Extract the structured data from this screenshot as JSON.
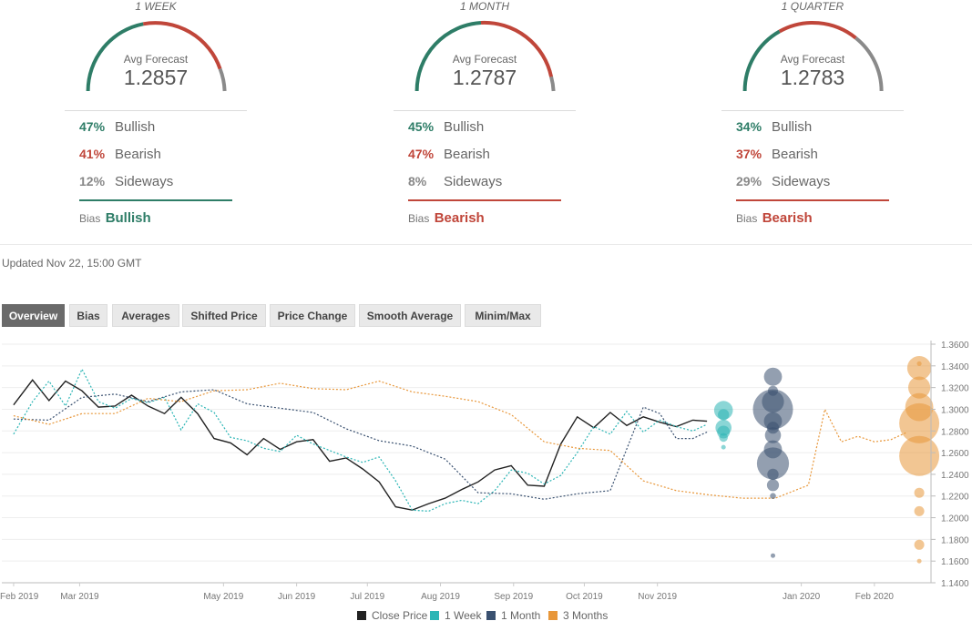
{
  "forecast_panels": [
    {
      "period": "1 WEEK",
      "avg_label": "Avg Forecast",
      "avg_value": "1.2857",
      "rows": [
        {
          "pct": "47%",
          "label": "Bullish"
        },
        {
          "pct": "41%",
          "label": "Bearish"
        },
        {
          "pct": "12%",
          "label": "Sideways"
        }
      ],
      "bias_label": "Bias",
      "bias_value": "Bullish"
    },
    {
      "period": "1 MONTH",
      "avg_label": "Avg Forecast",
      "avg_value": "1.2787",
      "rows": [
        {
          "pct": "45%",
          "label": "Bullish"
        },
        {
          "pct": "47%",
          "label": "Bearish"
        },
        {
          "pct": "8%",
          "label": "Sideways"
        }
      ],
      "bias_label": "Bias",
      "bias_value": "Bearish"
    },
    {
      "period": "1 QUARTER",
      "avg_label": "Avg Forecast",
      "avg_value": "1.2783",
      "rows": [
        {
          "pct": "34%",
          "label": "Bullish"
        },
        {
          "pct": "37%",
          "label": "Bearish"
        },
        {
          "pct": "29%",
          "label": "Sideways"
        }
      ],
      "bias_label": "Bias",
      "bias_value": "Bearish"
    }
  ],
  "updated": "Updated Nov 22, 15:00 GMT",
  "tabs": [
    "Overview",
    "Bias",
    "Averages",
    "Shifted Price",
    "Price Change",
    "Smooth Average",
    "Minim/Max"
  ],
  "active_tab": "Overview",
  "colors": {
    "bullish": "#2e7d67",
    "bearish": "#c0463a",
    "sideways": "#8a8a8a",
    "close": "#222222",
    "week": "#2bb5b5",
    "month": "#3a5170",
    "quarter": "#e8973a"
  },
  "chart_data": {
    "type": "line",
    "x_ticks": [
      "Feb 2019",
      "Mar 2019",
      "May 2019",
      "Jun 2019",
      "Jul 2019",
      "Aug 2019",
      "Sep 2019",
      "Oct 2019",
      "Nov 2019",
      "Jan 2020",
      "Feb 2020"
    ],
    "y_ticks": [
      "1.3600",
      "1.3400",
      "1.3200",
      "1.3000",
      "1.2800",
      "1.2600",
      "1.2400",
      "1.2200",
      "1.2000",
      "1.1800",
      "1.1600",
      "1.1400"
    ],
    "ylim": [
      1.14,
      1.36
    ],
    "x_range": [
      "2019-01-27",
      "2020-02-25"
    ],
    "legend": {
      "position": "bottom",
      "entries": [
        "Close Price",
        "1 Week",
        "1 Month",
        "3 Months"
      ]
    },
    "series": [
      {
        "name": "Close Price",
        "style": "solid",
        "x": [
          "2019-02-01",
          "2019-02-09",
          "2019-02-16",
          "2019-02-23",
          "2019-03-02",
          "2019-03-09",
          "2019-03-16",
          "2019-03-23",
          "2019-03-30",
          "2019-04-06",
          "2019-04-13",
          "2019-04-20",
          "2019-04-27",
          "2019-05-04",
          "2019-05-11",
          "2019-05-18",
          "2019-05-25",
          "2019-06-01",
          "2019-06-08",
          "2019-06-15",
          "2019-06-22",
          "2019-06-29",
          "2019-07-06",
          "2019-07-13",
          "2019-07-20",
          "2019-07-27",
          "2019-08-03",
          "2019-08-10",
          "2019-08-17",
          "2019-08-24",
          "2019-08-31",
          "2019-09-07",
          "2019-09-14",
          "2019-09-21",
          "2019-09-28",
          "2019-10-05",
          "2019-10-12",
          "2019-10-19",
          "2019-10-26",
          "2019-11-02",
          "2019-11-09",
          "2019-11-16",
          "2019-11-22"
        ],
        "y": [
          1.304,
          1.327,
          1.308,
          1.326,
          1.317,
          1.302,
          1.303,
          1.313,
          1.303,
          1.296,
          1.311,
          1.296,
          1.273,
          1.269,
          1.258,
          1.273,
          1.263,
          1.27,
          1.272,
          1.252,
          1.255,
          1.245,
          1.233,
          1.21,
          1.207,
          1.213,
          1.218,
          1.226,
          1.233,
          1.244,
          1.248,
          1.23,
          1.229,
          1.268,
          1.293,
          1.283,
          1.297,
          1.285,
          1.293,
          1.288,
          1.284,
          1.29,
          1.289
        ]
      },
      {
        "name": "1 Week",
        "style": "dotted",
        "x": [
          "2019-02-01",
          "2019-02-09",
          "2019-02-16",
          "2019-02-23",
          "2019-03-02",
          "2019-03-09",
          "2019-03-16",
          "2019-03-23",
          "2019-03-30",
          "2019-04-06",
          "2019-04-13",
          "2019-04-20",
          "2019-04-27",
          "2019-05-04",
          "2019-05-11",
          "2019-05-18",
          "2019-05-25",
          "2019-06-01",
          "2019-06-08",
          "2019-06-15",
          "2019-06-22",
          "2019-06-29",
          "2019-07-06",
          "2019-07-13",
          "2019-07-20",
          "2019-07-27",
          "2019-08-03",
          "2019-08-10",
          "2019-08-17",
          "2019-08-24",
          "2019-08-31",
          "2019-09-07",
          "2019-09-14",
          "2019-09-21",
          "2019-09-28",
          "2019-10-05",
          "2019-10-12",
          "2019-10-19",
          "2019-10-26",
          "2019-11-02",
          "2019-11-09",
          "2019-11-16",
          "2019-11-22"
        ],
        "y": [
          1.277,
          1.307,
          1.326,
          1.303,
          1.337,
          1.307,
          1.301,
          1.31,
          1.306,
          1.311,
          1.281,
          1.305,
          1.297,
          1.274,
          1.271,
          1.264,
          1.261,
          1.276,
          1.268,
          1.262,
          1.256,
          1.251,
          1.256,
          1.234,
          1.207,
          1.206,
          1.213,
          1.216,
          1.213,
          1.225,
          1.244,
          1.241,
          1.231,
          1.239,
          1.26,
          1.284,
          1.277,
          1.298,
          1.279,
          1.29,
          1.284,
          1.28,
          1.286
        ]
      },
      {
        "name": "1 Month",
        "style": "dotted",
        "x": [
          "2019-02-01",
          "2019-02-16",
          "2019-03-02",
          "2019-03-16",
          "2019-03-30",
          "2019-04-13",
          "2019-04-27",
          "2019-05-11",
          "2019-05-25",
          "2019-06-08",
          "2019-06-22",
          "2019-07-06",
          "2019-07-20",
          "2019-08-03",
          "2019-08-17",
          "2019-08-31",
          "2019-09-14",
          "2019-09-28",
          "2019-10-12",
          "2019-10-26",
          "2019-11-02",
          "2019-11-09",
          "2019-11-16",
          "2019-11-22"
        ],
        "y": [
          1.291,
          1.29,
          1.311,
          1.314,
          1.307,
          1.316,
          1.318,
          1.305,
          1.301,
          1.297,
          1.282,
          1.271,
          1.266,
          1.254,
          1.223,
          1.222,
          1.217,
          1.222,
          1.225,
          1.302,
          1.296,
          1.273,
          1.273,
          1.279
        ]
      },
      {
        "name": "3 Months",
        "style": "dotted",
        "x": [
          "2019-02-01",
          "2019-02-16",
          "2019-03-02",
          "2019-03-16",
          "2019-03-30",
          "2019-04-13",
          "2019-04-27",
          "2019-05-11",
          "2019-05-25",
          "2019-06-08",
          "2019-06-22",
          "2019-07-06",
          "2019-07-20",
          "2019-08-03",
          "2019-08-17",
          "2019-08-31",
          "2019-09-14",
          "2019-09-28",
          "2019-10-12",
          "2019-10-26",
          "2019-11-09",
          "2019-11-23",
          "2019-12-07",
          "2019-12-21",
          "2020-01-04",
          "2020-01-11",
          "2020-01-18",
          "2020-01-25",
          "2020-02-01",
          "2020-02-08",
          "2020-02-15"
        ],
        "y": [
          1.294,
          1.286,
          1.296,
          1.296,
          1.31,
          1.307,
          1.317,
          1.318,
          1.324,
          1.319,
          1.318,
          1.326,
          1.316,
          1.312,
          1.307,
          1.295,
          1.27,
          1.264,
          1.262,
          1.234,
          1.225,
          1.221,
          1.218,
          1.218,
          1.23,
          1.3,
          1.27,
          1.275,
          1.27,
          1.272,
          1.279
        ]
      }
    ],
    "forecast_bubbles": [
      {
        "name": "1 Week",
        "date": "2019-11-29",
        "points": [
          {
            "y": 1.299,
            "size": 0.47
          },
          {
            "y": 1.295,
            "size": 0.28
          },
          {
            "y": 1.283,
            "size": 0.4
          },
          {
            "y": 1.279,
            "size": 0.32
          },
          {
            "y": 1.274,
            "size": 0.22
          },
          {
            "y": 1.265,
            "size": 0.1
          }
        ]
      },
      {
        "name": "1 Month",
        "date": "2019-12-20",
        "points": [
          {
            "y": 1.33,
            "size": 0.45
          },
          {
            "y": 1.317,
            "size": 0.25
          },
          {
            "y": 1.307,
            "size": 0.55
          },
          {
            "y": 1.3,
            "size": 1.0
          },
          {
            "y": 1.289,
            "size": 0.45
          },
          {
            "y": 1.283,
            "size": 0.3
          },
          {
            "y": 1.276,
            "size": 0.4
          },
          {
            "y": 1.263,
            "size": 0.45
          },
          {
            "y": 1.25,
            "size": 0.8
          },
          {
            "y": 1.24,
            "size": 0.28
          },
          {
            "y": 1.23,
            "size": 0.3
          },
          {
            "y": 1.22,
            "size": 0.15
          },
          {
            "y": 1.165,
            "size": 0.1
          }
        ]
      },
      {
        "name": "3 Months",
        "date": "2020-02-20",
        "points": [
          {
            "y": 1.342,
            "size": 0.12
          },
          {
            "y": 1.338,
            "size": 0.6
          },
          {
            "y": 1.32,
            "size": 0.55
          },
          {
            "y": 1.302,
            "size": 0.7
          },
          {
            "y": 1.287,
            "size": 1.0
          },
          {
            "y": 1.257,
            "size": 1.0
          },
          {
            "y": 1.223,
            "size": 0.25
          },
          {
            "y": 1.206,
            "size": 0.25
          },
          {
            "y": 1.175,
            "size": 0.25
          },
          {
            "y": 1.16,
            "size": 0.08
          }
        ]
      }
    ]
  }
}
